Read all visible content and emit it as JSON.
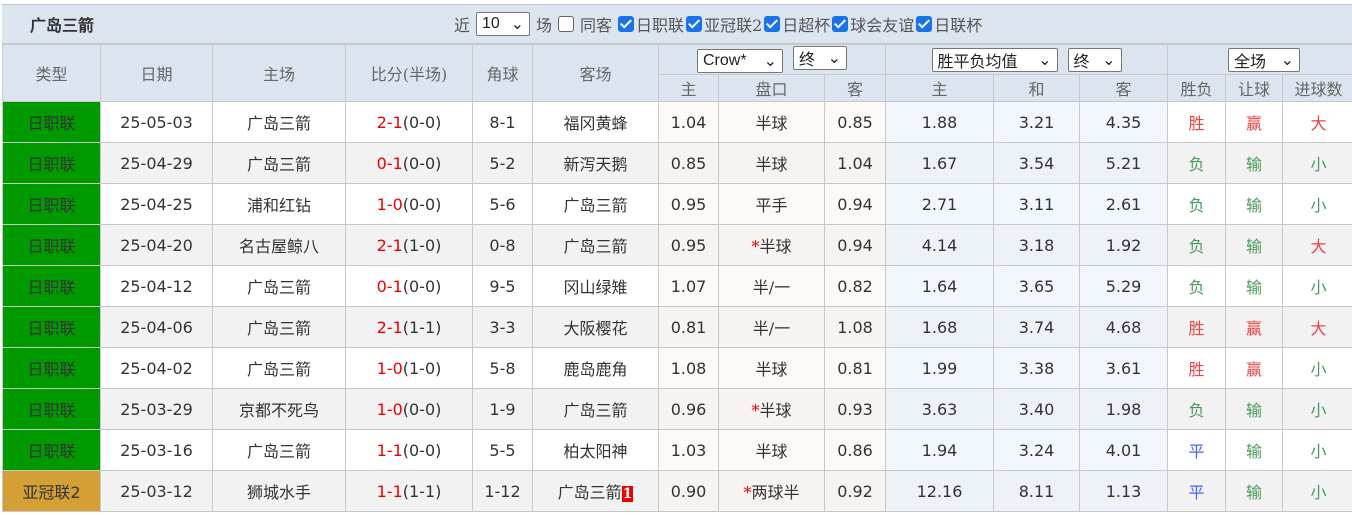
{
  "title": "广岛三箭",
  "filters": {
    "recent_label": "近",
    "recent_value": "10",
    "games_label": "场",
    "same_away_label": "同客",
    "same_away_checked": false,
    "leagues": [
      {
        "label": "日职联",
        "checked": true
      },
      {
        "label": "亚冠联2",
        "checked": true
      },
      {
        "label": "日超杯",
        "checked": true
      },
      {
        "label": "球会友谊",
        "checked": true
      },
      {
        "label": "日联杯",
        "checked": true
      }
    ]
  },
  "header": {
    "type": "类型",
    "date": "日期",
    "home": "主场",
    "score": "比分(半场)",
    "corner": "角球",
    "away": "客场",
    "company_select": "Crow*",
    "odds_time_select": "终",
    "eu_select": "胜平负均值",
    "eu_time_select": "终",
    "period_select": "全场",
    "sub": [
      "主",
      "盘口",
      "客",
      "主",
      "和",
      "客",
      "胜负",
      "让球",
      "进球数"
    ]
  },
  "colors": {
    "jleague": "#009900",
    "acl2": "#d4a035",
    "win": "#ee4444",
    "lose": "#4a9a5a",
    "draw": "#4466ee"
  },
  "rows": [
    {
      "type": "日职联",
      "date": "25-05-03",
      "home": "广岛三箭",
      "ft": "2-1",
      "ht": "(0-0)",
      "corner": "8-1",
      "away": "福冈黄蜂",
      "oh": "1.04",
      "line": "半球",
      "star": "",
      "oa": "0.85",
      "eh": "1.88",
      "ed": "3.21",
      "ea": "4.35",
      "wl": "胜",
      "ah": "赢",
      "ou": "大"
    },
    {
      "type": "日职联",
      "date": "25-04-29",
      "home": "广岛三箭",
      "ft": "0-1",
      "ht": "(0-0)",
      "corner": "5-2",
      "away": "新泻天鹅",
      "oh": "0.85",
      "line": "半球",
      "star": "",
      "oa": "1.04",
      "eh": "1.67",
      "ed": "3.54",
      "ea": "5.21",
      "wl": "负",
      "ah": "输",
      "ou": "小"
    },
    {
      "type": "日职联",
      "date": "25-04-25",
      "home": "浦和红钻",
      "ft": "1-0",
      "ht": "(0-0)",
      "corner": "5-6",
      "away": "广岛三箭",
      "oh": "0.95",
      "line": "平手",
      "star": "",
      "oa": "0.94",
      "eh": "2.71",
      "ed": "3.11",
      "ea": "2.61",
      "wl": "负",
      "ah": "输",
      "ou": "小"
    },
    {
      "type": "日职联",
      "date": "25-04-20",
      "home": "名古屋鲸八",
      "ft": "2-1",
      "ht": "(1-0)",
      "corner": "0-8",
      "away": "广岛三箭",
      "oh": "0.95",
      "line": "半球",
      "star": "*",
      "oa": "0.94",
      "eh": "4.14",
      "ed": "3.18",
      "ea": "1.92",
      "wl": "负",
      "ah": "输",
      "ou": "大"
    },
    {
      "type": "日职联",
      "date": "25-04-12",
      "home": "广岛三箭",
      "ft": "0-1",
      "ht": "(0-0)",
      "corner": "9-5",
      "away": "冈山绿雉",
      "oh": "1.07",
      "line": "半/一",
      "star": "",
      "oa": "0.82",
      "eh": "1.64",
      "ed": "3.65",
      "ea": "5.29",
      "wl": "负",
      "ah": "输",
      "ou": "小"
    },
    {
      "type": "日职联",
      "date": "25-04-06",
      "home": "广岛三箭",
      "ft": "2-1",
      "ht": "(1-1)",
      "corner": "3-3",
      "away": "大阪樱花",
      "oh": "0.81",
      "line": "半/一",
      "star": "",
      "oa": "1.08",
      "eh": "1.68",
      "ed": "3.74",
      "ea": "4.68",
      "wl": "胜",
      "ah": "赢",
      "ou": "大"
    },
    {
      "type": "日职联",
      "date": "25-04-02",
      "home": "广岛三箭",
      "ft": "1-0",
      "ht": "(1-0)",
      "corner": "5-8",
      "away": "鹿岛鹿角",
      "oh": "1.08",
      "line": "半球",
      "star": "",
      "oa": "0.81",
      "eh": "1.99",
      "ed": "3.38",
      "ea": "3.61",
      "wl": "胜",
      "ah": "赢",
      "ou": "小"
    },
    {
      "type": "日职联",
      "date": "25-03-29",
      "home": "京都不死鸟",
      "ft": "1-0",
      "ht": "(0-0)",
      "corner": "1-9",
      "away": "广岛三箭",
      "oh": "0.96",
      "line": "半球",
      "star": "*",
      "oa": "0.93",
      "eh": "3.63",
      "ed": "3.40",
      "ea": "1.98",
      "wl": "负",
      "ah": "输",
      "ou": "小",
      "ed_red": true
    },
    {
      "type": "日职联",
      "date": "25-03-16",
      "home": "广岛三箭",
      "ft": "1-1",
      "ht": "(0-0)",
      "corner": "5-5",
      "away": "柏太阳神",
      "oh": "1.03",
      "line": "半球",
      "star": "",
      "oa": "0.86",
      "eh": "1.94",
      "ed": "3.24",
      "ea": "4.01",
      "wl": "平",
      "ah": "输",
      "ou": "小"
    },
    {
      "type": "亚冠联2",
      "date": "25-03-12",
      "home": "狮城水手",
      "ft": "1-1",
      "ht": "(1-1)",
      "corner": "1-12",
      "away": "广岛三箭",
      "away_badge": "1",
      "oh": "0.90",
      "line": "两球半",
      "star": "*",
      "oa": "0.92",
      "eh": "12.16",
      "ed": "8.11",
      "ea": "1.13",
      "wl": "平",
      "ah": "输",
      "ou": "小"
    }
  ]
}
